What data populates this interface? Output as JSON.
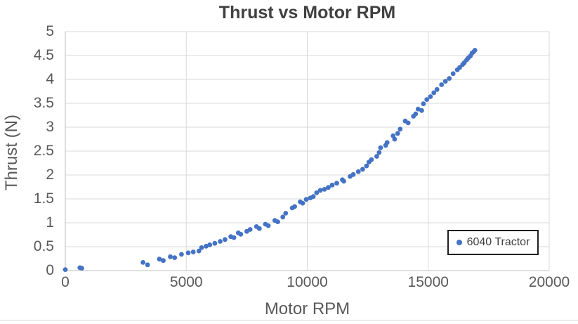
{
  "chart": {
    "title": "Thrust vs Motor RPM",
    "legend": {
      "label": "6040 Tractor"
    }
  },
  "colors": {
    "accent": "#4472C4",
    "gridline": "#D9D9D9",
    "axis_line": "#BFBFBF",
    "tick_text": "#595959",
    "title_text": "#404040"
  },
  "chart_data": {
    "type": "scatter",
    "title": "Thrust vs Motor RPM",
    "xlabel": "Motor RPM",
    "ylabel": "Thrust (N)",
    "xlim": [
      0,
      20000
    ],
    "ylim": [
      0,
      5
    ],
    "x_ticks": [
      0,
      5000,
      10000,
      15000,
      20000
    ],
    "y_ticks": [
      0,
      0.5,
      1,
      1.5,
      2,
      2.5,
      3,
      3.5,
      4,
      4.5,
      5
    ],
    "grid": true,
    "legend_position": "inside-right",
    "series": [
      {
        "name": "6040 Tractor",
        "color": "#4472C4",
        "points": [
          [
            0,
            0.02
          ],
          [
            600,
            0.06
          ],
          [
            680,
            0.05
          ],
          [
            3210,
            0.17
          ],
          [
            3400,
            0.12
          ],
          [
            3890,
            0.24
          ],
          [
            4050,
            0.21
          ],
          [
            4340,
            0.29
          ],
          [
            4520,
            0.27
          ],
          [
            4800,
            0.34
          ],
          [
            5080,
            0.37
          ],
          [
            5290,
            0.39
          ],
          [
            5520,
            0.41
          ],
          [
            5630,
            0.48
          ],
          [
            5820,
            0.51
          ],
          [
            5970,
            0.54
          ],
          [
            6180,
            0.57
          ],
          [
            6400,
            0.61
          ],
          [
            6600,
            0.65
          ],
          [
            6840,
            0.71
          ],
          [
            6970,
            0.69
          ],
          [
            7150,
            0.79
          ],
          [
            7250,
            0.76
          ],
          [
            7500,
            0.82
          ],
          [
            7640,
            0.86
          ],
          [
            7900,
            0.92
          ],
          [
            8020,
            0.88
          ],
          [
            8270,
            0.97
          ],
          [
            8390,
            0.94
          ],
          [
            8660,
            1.05
          ],
          [
            8780,
            1.02
          ],
          [
            8990,
            1.12
          ],
          [
            9110,
            1.2
          ],
          [
            9380,
            1.31
          ],
          [
            9480,
            1.34
          ],
          [
            9710,
            1.44
          ],
          [
            9810,
            1.41
          ],
          [
            9960,
            1.49
          ],
          [
            10130,
            1.52
          ],
          [
            10250,
            1.55
          ],
          [
            10390,
            1.63
          ],
          [
            10540,
            1.68
          ],
          [
            10710,
            1.7
          ],
          [
            10870,
            1.74
          ],
          [
            11030,
            1.79
          ],
          [
            11220,
            1.83
          ],
          [
            11450,
            1.9
          ],
          [
            11510,
            1.87
          ],
          [
            11770,
            1.97
          ],
          [
            11900,
            2.01
          ],
          [
            12110,
            2.07
          ],
          [
            12290,
            2.12
          ],
          [
            12450,
            2.19
          ],
          [
            12550,
            2.27
          ],
          [
            12650,
            2.32
          ],
          [
            12870,
            2.39
          ],
          [
            12970,
            2.47
          ],
          [
            13030,
            2.57
          ],
          [
            13240,
            2.62
          ],
          [
            13300,
            2.68
          ],
          [
            13550,
            2.82
          ],
          [
            13610,
            2.75
          ],
          [
            13740,
            2.87
          ],
          [
            13840,
            2.96
          ],
          [
            14050,
            3.13
          ],
          [
            14170,
            3.09
          ],
          [
            14390,
            3.23
          ],
          [
            14480,
            3.28
          ],
          [
            14580,
            3.38
          ],
          [
            14730,
            3.35
          ],
          [
            14800,
            3.49
          ],
          [
            14940,
            3.58
          ],
          [
            15090,
            3.64
          ],
          [
            15230,
            3.72
          ],
          [
            15360,
            3.79
          ],
          [
            15550,
            3.89
          ],
          [
            15710,
            3.96
          ],
          [
            15870,
            4.02
          ],
          [
            16030,
            4.12
          ],
          [
            16200,
            4.2
          ],
          [
            16300,
            4.25
          ],
          [
            16420,
            4.31
          ],
          [
            16490,
            4.35
          ],
          [
            16590,
            4.41
          ],
          [
            16660,
            4.45
          ],
          [
            16740,
            4.49
          ],
          [
            16810,
            4.55
          ],
          [
            16880,
            4.58
          ],
          [
            16930,
            4.61
          ]
        ]
      }
    ]
  }
}
